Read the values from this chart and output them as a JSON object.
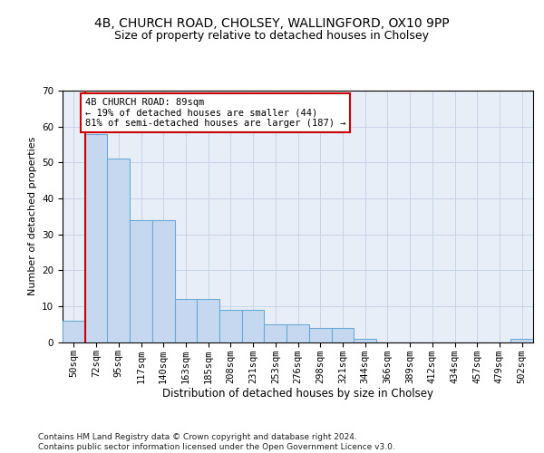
{
  "title1": "4B, CHURCH ROAD, CHOLSEY, WALLINGFORD, OX10 9PP",
  "title2": "Size of property relative to detached houses in Cholsey",
  "xlabel": "Distribution of detached houses by size in Cholsey",
  "ylabel": "Number of detached properties",
  "categories": [
    "50sqm",
    "72sqm",
    "95sqm",
    "117sqm",
    "140sqm",
    "163sqm",
    "185sqm",
    "208sqm",
    "231sqm",
    "253sqm",
    "276sqm",
    "298sqm",
    "321sqm",
    "344sqm",
    "366sqm",
    "389sqm",
    "412sqm",
    "434sqm",
    "457sqm",
    "479sqm",
    "502sqm"
  ],
  "values": [
    6,
    58,
    51,
    34,
    34,
    12,
    12,
    9,
    9,
    5,
    5,
    4,
    4,
    1,
    0,
    0,
    0,
    0,
    0,
    0,
    1
  ],
  "bar_color": "#c5d8f0",
  "bar_edge_color": "#6aaad4",
  "vline_color": "#cc0000",
  "vline_x": 0.5,
  "annotation_text": "4B CHURCH ROAD: 89sqm\n← 19% of detached houses are smaller (44)\n81% of semi-detached houses are larger (187) →",
  "annotation_box_color": "#ffffff",
  "annotation_box_edge": "#cc0000",
  "ylim": [
    0,
    70
  ],
  "yticks": [
    0,
    10,
    20,
    30,
    40,
    50,
    60,
    70
  ],
  "footer": "Contains HM Land Registry data © Crown copyright and database right 2024.\nContains public sector information licensed under the Open Government Licence v3.0.",
  "bg_color": "#ffffff",
  "plot_bg_color": "#e8eef8",
  "grid_color": "#c8d4e8",
  "title1_fontsize": 10,
  "title2_fontsize": 9,
  "annotation_fontsize": 7.5,
  "xlabel_fontsize": 8.5,
  "ylabel_fontsize": 8,
  "tick_fontsize": 7.5,
  "footer_fontsize": 6.5
}
